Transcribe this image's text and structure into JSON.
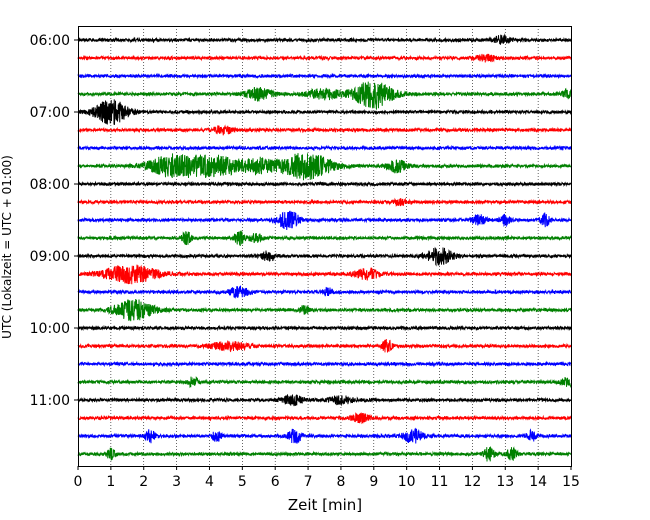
{
  "chart_data": {
    "type": "line",
    "title": "",
    "xlabel": "Zeit  [min]",
    "ylabel": "UTC (Lokalzeit = UTC + 01:00)",
    "xlim": [
      0,
      15
    ],
    "x_ticks": [
      "0",
      "1",
      "2",
      "3",
      "4",
      "5",
      "6",
      "7",
      "8",
      "9",
      "10",
      "11",
      "12",
      "13",
      "14",
      "15"
    ],
    "y_ticks": [
      "06:00",
      "07:00",
      "08:00",
      "09:00",
      "10:00",
      "11:00"
    ],
    "grid": "vertical dotted at each minute",
    "trace_colors": [
      "#000000",
      "#ff0000",
      "#0000ff",
      "#008000"
    ],
    "traces": [
      {
        "start": "06:00",
        "events": [
          [
            12.9,
            0.25,
            4
          ]
        ]
      },
      {
        "start": "06:15",
        "events": [
          [
            12.4,
            0.3,
            3
          ]
        ]
      },
      {
        "start": "06:30",
        "events": []
      },
      {
        "start": "06:45",
        "events": [
          [
            5.5,
            0.4,
            6
          ],
          [
            7.5,
            0.5,
            5
          ],
          [
            9.0,
            0.6,
            14
          ],
          [
            14.9,
            0.2,
            4
          ]
        ]
      },
      {
        "start": "07:00",
        "events": [
          [
            1.0,
            0.5,
            12
          ]
        ]
      },
      {
        "start": "07:15",
        "events": [
          [
            4.4,
            0.3,
            4
          ]
        ]
      },
      {
        "start": "07:30",
        "events": []
      },
      {
        "start": "07:45",
        "events": [
          [
            2.8,
            0.7,
            9
          ],
          [
            4.1,
            1.0,
            10
          ],
          [
            5.5,
            0.4,
            6
          ],
          [
            6.9,
            0.8,
            13
          ],
          [
            9.7,
            0.3,
            6
          ]
        ]
      },
      {
        "start": "08:00",
        "events": []
      },
      {
        "start": "08:15",
        "events": [
          [
            9.8,
            0.2,
            3
          ]
        ]
      },
      {
        "start": "08:30",
        "events": [
          [
            6.4,
            0.3,
            10
          ],
          [
            12.2,
            0.2,
            5
          ],
          [
            13.0,
            0.15,
            5
          ],
          [
            14.2,
            0.15,
            6
          ]
        ]
      },
      {
        "start": "08:45",
        "events": [
          [
            3.3,
            0.15,
            6
          ],
          [
            4.9,
            0.15,
            7
          ],
          [
            5.4,
            0.2,
            4
          ]
        ]
      },
      {
        "start": "09:00",
        "events": [
          [
            5.8,
            0.2,
            5
          ],
          [
            11.0,
            0.4,
            8
          ]
        ]
      },
      {
        "start": "09:15",
        "events": [
          [
            1.6,
            0.8,
            9
          ],
          [
            8.8,
            0.4,
            5
          ]
        ]
      },
      {
        "start": "09:30",
        "events": [
          [
            4.9,
            0.3,
            5
          ],
          [
            7.6,
            0.15,
            4
          ]
        ]
      },
      {
        "start": "09:45",
        "events": [
          [
            1.7,
            0.6,
            10
          ],
          [
            6.9,
            0.15,
            4
          ]
        ]
      },
      {
        "start": "10:00",
        "events": []
      },
      {
        "start": "10:15",
        "events": [
          [
            4.6,
            0.6,
            4
          ],
          [
            9.4,
            0.15,
            6
          ]
        ]
      },
      {
        "start": "10:30",
        "events": []
      },
      {
        "start": "10:45",
        "events": [
          [
            3.5,
            0.15,
            5
          ],
          [
            14.9,
            0.2,
            4
          ]
        ]
      },
      {
        "start": "11:00",
        "events": [
          [
            6.5,
            0.3,
            5
          ],
          [
            8.0,
            0.4,
            4
          ]
        ]
      },
      {
        "start": "11:15",
        "events": [
          [
            8.6,
            0.3,
            4
          ]
        ]
      },
      {
        "start": "11:30",
        "events": [
          [
            2.2,
            0.15,
            6
          ],
          [
            4.2,
            0.15,
            6
          ],
          [
            6.6,
            0.2,
            7
          ],
          [
            10.2,
            0.3,
            7
          ],
          [
            13.8,
            0.15,
            5
          ]
        ]
      },
      {
        "start": "11:45",
        "events": [
          [
            1.0,
            0.15,
            5
          ],
          [
            12.5,
            0.15,
            7
          ],
          [
            13.2,
            0.15,
            6
          ]
        ]
      }
    ]
  }
}
